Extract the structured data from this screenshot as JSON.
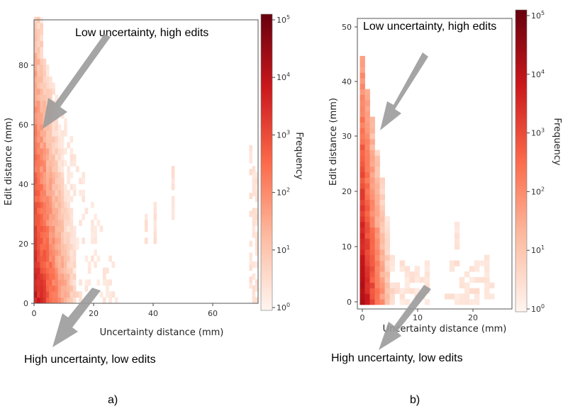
{
  "chart_data": [
    {
      "type": "heatmap",
      "panel_label": "a)",
      "xlabel": "Uncertainty distance (mm)",
      "ylabel": "Edit distance (mm)",
      "xlim": [
        0,
        75
      ],
      "ylim": [
        0,
        95
      ],
      "xticks": [
        "0",
        "20",
        "40",
        "60"
      ],
      "yticks": [
        "0",
        "20",
        "40",
        "60",
        "80"
      ],
      "colorbar": {
        "label": "Frequency",
        "scale": "log",
        "ticks": [
          "10",
          "10",
          "10",
          "10",
          "10",
          "10"
        ],
        "exponents": [
          "0",
          "1",
          "2",
          "3",
          "4",
          "5"
        ],
        "colors": [
          "#fff5f0",
          "#fcbba1",
          "#fb6a4a",
          "#cb181d",
          "#67000d"
        ]
      },
      "annotations": {
        "top": "Low uncertainty, high edits",
        "bottom": "High uncertainty, low edits"
      }
    },
    {
      "type": "heatmap",
      "panel_label": "b)",
      "xlabel": "Uncertainty distance (mm)",
      "ylabel": "Edit distance (mm)",
      "xlim": [
        0,
        27
      ],
      "ylim": [
        0,
        52
      ],
      "xticks": [
        "0",
        "10",
        "20"
      ],
      "yticks": [
        "0",
        "10",
        "20",
        "30",
        "40",
        "50"
      ],
      "colorbar": {
        "label": "Frequency",
        "scale": "log",
        "ticks": [
          "10",
          "10",
          "10",
          "10",
          "10",
          "10"
        ],
        "exponents": [
          "0",
          "1",
          "2",
          "3",
          "4",
          "5"
        ],
        "colors": [
          "#fff5f0",
          "#fcbba1",
          "#fb6a4a",
          "#cb181d",
          "#67000d"
        ]
      },
      "annotations": {
        "top": "Low uncertainty, high edits",
        "bottom": "High uncertainty, low edits"
      }
    }
  ]
}
